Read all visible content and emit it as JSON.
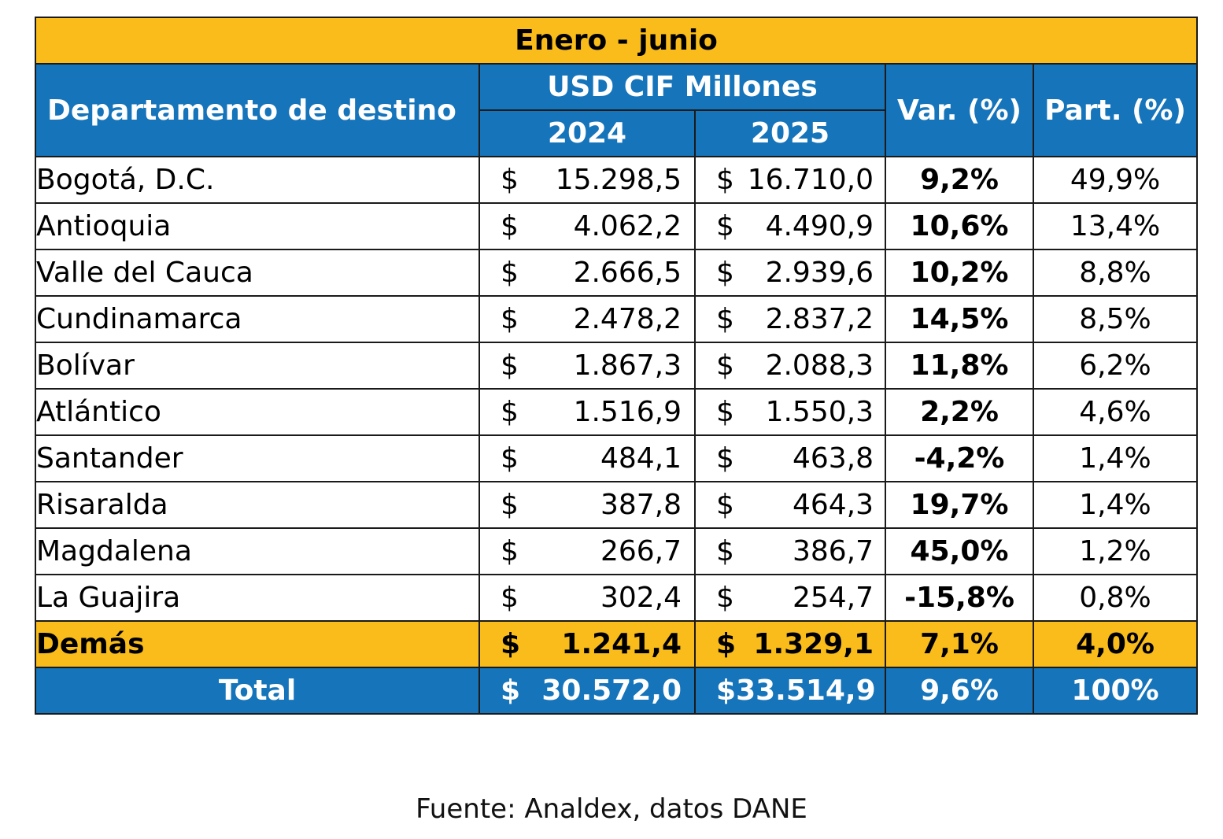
{
  "title": "Enero - junio",
  "headers": {
    "department": "Departamento de destino",
    "usd_group": "USD CIF Millones",
    "year_2024": "2024",
    "year_2025": "2025",
    "var": "Var. (%)",
    "part": "Part. (%)"
  },
  "currency_symbol": "$",
  "rows": [
    {
      "name": "Bogotá, D.C.",
      "v2024": "15.298,5",
      "v2025": "16.710,0",
      "var": "9,2%",
      "part": "49,9%"
    },
    {
      "name": "Antioquia",
      "v2024": "4.062,2",
      "v2025": "4.490,9",
      "var": "10,6%",
      "part": "13,4%"
    },
    {
      "name": "Valle del Cauca",
      "v2024": "2.666,5",
      "v2025": "2.939,6",
      "var": "10,2%",
      "part": "8,8%"
    },
    {
      "name": "Cundinamarca",
      "v2024": "2.478,2",
      "v2025": "2.837,2",
      "var": "14,5%",
      "part": "8,5%"
    },
    {
      "name": "Bolívar",
      "v2024": "1.867,3",
      "v2025": "2.088,3",
      "var": "11,8%",
      "part": "6,2%"
    },
    {
      "name": "Atlántico",
      "v2024": "1.516,9",
      "v2025": "1.550,3",
      "var": "2,2%",
      "part": "4,6%"
    },
    {
      "name": "Santander",
      "v2024": "484,1",
      "v2025": "463,8",
      "var": "-4,2%",
      "part": "1,4%"
    },
    {
      "name": "Risaralda",
      "v2024": "387,8",
      "v2025": "464,3",
      "var": "19,7%",
      "part": "1,4%"
    },
    {
      "name": "Magdalena",
      "v2024": "266,7",
      "v2025": "386,7",
      "var": "45,0%",
      "part": "1,2%"
    },
    {
      "name": "La Guajira",
      "v2024": "302,4",
      "v2025": "254,7",
      "var": "-15,8%",
      "part": "0,8%"
    }
  ],
  "others": {
    "name": "Demás",
    "v2024": "1.241,4",
    "v2025": "1.329,1",
    "var": "7,1%",
    "part": "4,0%"
  },
  "total": {
    "name": "Total",
    "v2024": "30.572,0",
    "v2025": "33.514,9",
    "var": "9,6%",
    "part": "100%"
  },
  "source": "Fuente: Analdex, datos DANE",
  "colors": {
    "yellow": "#F9BC1B",
    "blue": "#1574BA"
  }
}
